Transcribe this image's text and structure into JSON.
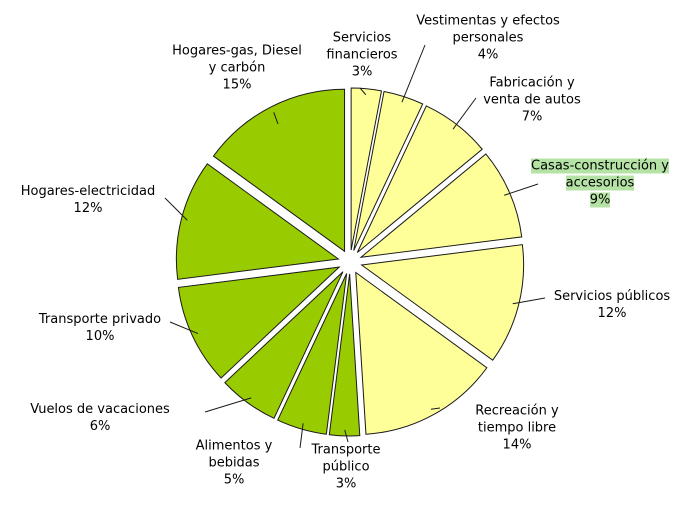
{
  "chart_data": {
    "type": "pie",
    "categories": [
      "Servicios financieros",
      "Vestimentas y efectos personales",
      "Fabricación y venta de autos",
      "Casas-construcción y accesorios",
      "Servicios públicos",
      "Recreación y tiempo libre",
      "Transporte público",
      "Alimentos y bebidas",
      "Vuelos de vacaciones",
      "Transporte privado",
      "Hogares-electricidad",
      "Hogares-gas, Diesel y carbón"
    ],
    "values": [
      3,
      4,
      7,
      9,
      12,
      14,
      3,
      5,
      6,
      10,
      12,
      15
    ],
    "value_labels": [
      "3%",
      "4%",
      "7%",
      "9%",
      "12%",
      "14%",
      "3%",
      "5%",
      "6%",
      "10%",
      "12%",
      "15%"
    ],
    "colors": [
      "#ffff99",
      "#ffff99",
      "#ffff99",
      "#ffff99",
      "#ffff99",
      "#ffff99",
      "#99cc00",
      "#99cc00",
      "#99cc00",
      "#99cc00",
      "#99cc00",
      "#99cc00"
    ]
  }
}
